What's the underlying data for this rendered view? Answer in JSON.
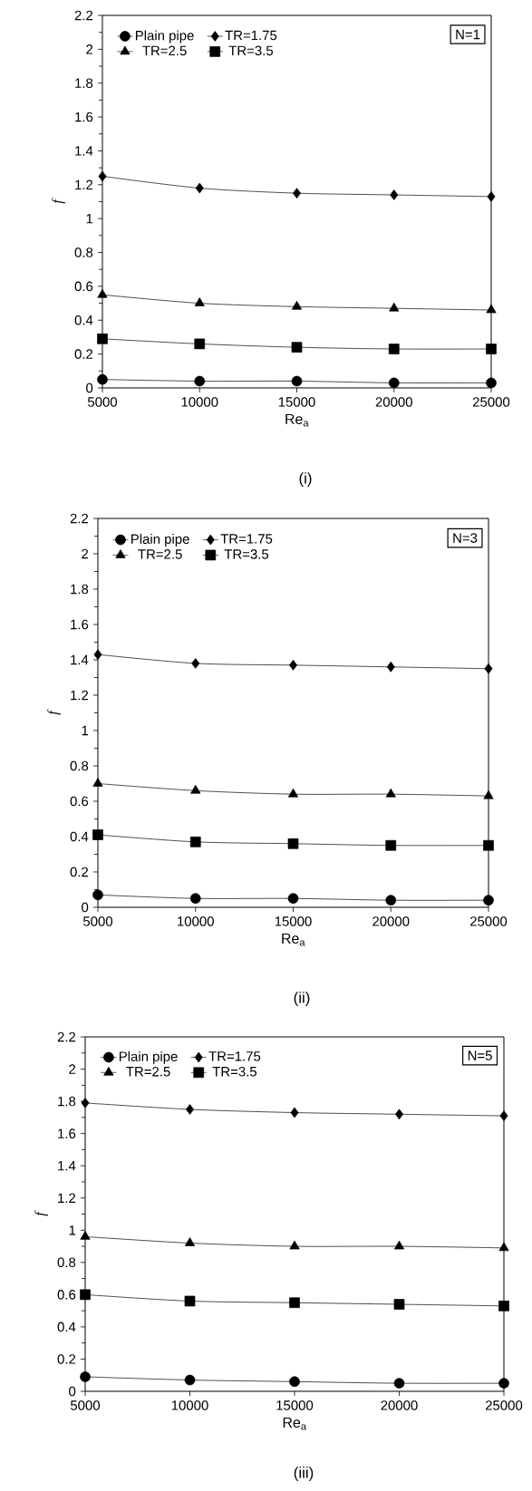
{
  "chart_data": [
    {
      "type": "line",
      "xlabel": "Re$_{a}$",
      "ylabel": "f",
      "x": [
        5000,
        10000,
        15000,
        20000,
        25000
      ],
      "xlim": [
        5000,
        25000
      ],
      "xticks": [
        5000,
        10000,
        15000,
        20000,
        25000
      ],
      "ylim": [
        0,
        2.2
      ],
      "yticks": [
        0,
        0.2,
        0.4,
        0.6,
        0.8,
        1,
        1.2,
        1.4,
        1.6,
        1.8,
        2,
        2.2
      ],
      "legend": "top left",
      "grid": false,
      "line_style": "solid",
      "annotations": [
        "N=1",
        "(i)"
      ],
      "series": [
        {
          "name": "Plain pipe",
          "color": "#000000",
          "marker": "circle",
          "values": [
            0.05,
            0.04,
            0.04,
            0.03,
            0.03
          ]
        },
        {
          "name": "TR=1.75",
          "color": "#000000",
          "marker": "diamond",
          "values": [
            1.25,
            1.18,
            1.15,
            1.14,
            1.13
          ]
        },
        {
          "name": "TR=2.5",
          "color": "#000000",
          "marker": "triangle",
          "values": [
            0.55,
            0.5,
            0.48,
            0.47,
            0.46
          ]
        },
        {
          "name": "TR=3.5",
          "color": "#000000",
          "marker": "square",
          "values": [
            0.29,
            0.26,
            0.24,
            0.23,
            0.23
          ]
        }
      ]
    },
    {
      "type": "line",
      "xlabel": "Re$_{a}$",
      "ylabel": "f",
      "x": [
        5000,
        10000,
        15000,
        20000,
        25000
      ],
      "xlim": [
        5000,
        25000
      ],
      "xticks": [
        5000,
        10000,
        15000,
        20000,
        25000
      ],
      "ylim": [
        0,
        2.2
      ],
      "yticks": [
        0,
        0.2,
        0.4,
        0.6,
        0.8,
        1,
        1.2,
        1.4,
        1.6,
        1.8,
        2,
        2.2
      ],
      "legend": "top left",
      "grid": false,
      "line_style": "solid",
      "annotations": [
        "N=3",
        "(ii)"
      ],
      "series": [
        {
          "name": "Plain pipe",
          "color": "#000000",
          "marker": "circle",
          "values": [
            0.07,
            0.05,
            0.05,
            0.04,
            0.04
          ]
        },
        {
          "name": "TR=1.75",
          "color": "#000000",
          "marker": "diamond",
          "values": [
            1.43,
            1.38,
            1.37,
            1.36,
            1.35
          ]
        },
        {
          "name": "TR=2.5",
          "color": "#000000",
          "marker": "triangle",
          "values": [
            0.7,
            0.66,
            0.64,
            0.64,
            0.63
          ]
        },
        {
          "name": "TR=3.5",
          "color": "#000000",
          "marker": "square",
          "values": [
            0.41,
            0.37,
            0.36,
            0.35,
            0.35
          ]
        }
      ]
    },
    {
      "type": "line",
      "xlabel": "Re$_{a}$",
      "ylabel": "f",
      "x": [
        5000,
        10000,
        15000,
        20000,
        25000
      ],
      "xlim": [
        5000,
        25000
      ],
      "xticks": [
        5000,
        10000,
        15000,
        20000,
        25000
      ],
      "ylim": [
        0,
        2.2
      ],
      "yticks": [
        0,
        0.2,
        0.4,
        0.6,
        0.8,
        1,
        1.2,
        1.4,
        1.6,
        1.8,
        2,
        2.2
      ],
      "legend": "top left",
      "grid": false,
      "line_style": "solid",
      "annotations": [
        "N=5",
        "(iii)"
      ],
      "series": [
        {
          "name": "Plain pipe",
          "color": "#000000",
          "marker": "circle",
          "values": [
            0.09,
            0.07,
            0.06,
            0.05,
            0.05
          ]
        },
        {
          "name": "TR=1.75",
          "color": "#000000",
          "marker": "diamond",
          "values": [
            1.79,
            1.75,
            1.73,
            1.72,
            1.71
          ]
        },
        {
          "name": "TR=2.5",
          "color": "#000000",
          "marker": "triangle",
          "values": [
            0.96,
            0.92,
            0.9,
            0.9,
            0.89
          ]
        },
        {
          "name": "TR=3.5",
          "color": "#000000",
          "marker": "square",
          "values": [
            0.6,
            0.56,
            0.55,
            0.54,
            0.53
          ]
        }
      ]
    }
  ]
}
